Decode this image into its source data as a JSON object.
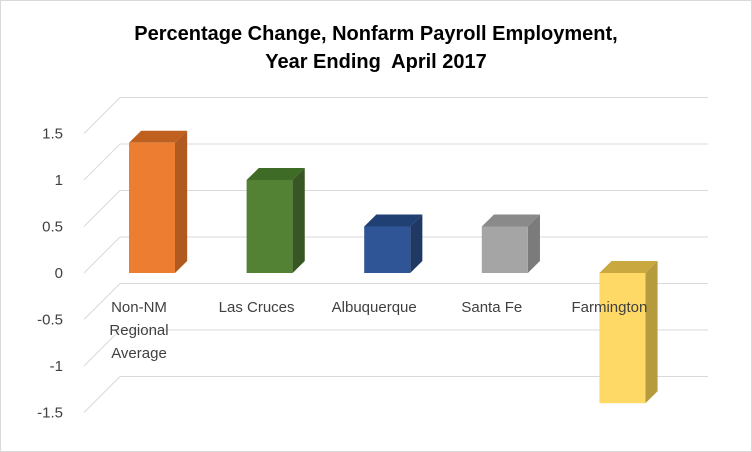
{
  "chart_data": {
    "type": "bar",
    "title": "Percentage Change, Nonfarm Payroll Employment,",
    "subtitle": "Year Ending  April 2017",
    "categories": [
      "Non-NM Regional Average",
      "Las Cruces",
      "Albuquerque",
      "Santa Fe",
      "Farmington"
    ],
    "category_lines": [
      [
        "Non-NM",
        "Regional",
        "Average"
      ],
      [
        "Las Cruces"
      ],
      [
        "Albuquerque"
      ],
      [
        "Santa Fe"
      ],
      [
        "Farmington"
      ]
    ],
    "values": [
      1.4,
      1.0,
      0.5,
      0.5,
      -1.4
    ],
    "colors": [
      "#ED7D31",
      "#548235",
      "#2F5597",
      "#A5A5A5",
      "#FFD966"
    ],
    "side_colors": [
      "#B05A1F",
      "#375623",
      "#1F3864",
      "#7B7B7B",
      "#B69A3E"
    ],
    "top_colors": [
      "#C0601F",
      "#3E6B26",
      "#203F73",
      "#8A8A8A",
      "#C9A93F"
    ],
    "ylim": [
      -1.5,
      1.5
    ],
    "yticks": [
      "1.5",
      "1",
      "0.5",
      "0",
      "-0.5",
      "-1",
      "-1.5"
    ],
    "ytick_values": [
      1.5,
      1.0,
      0.5,
      0.0,
      -0.5,
      -1.0,
      -1.5
    ],
    "grid": true,
    "style": "3d-column"
  }
}
